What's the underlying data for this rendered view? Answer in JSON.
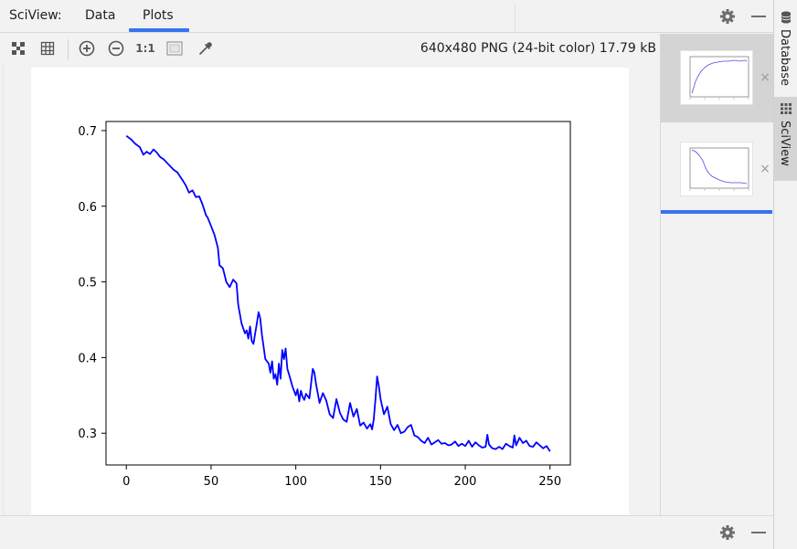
{
  "tool_window": {
    "title": "SciView:",
    "tabs": [
      {
        "label": "Data",
        "active": false
      },
      {
        "label": "Plots",
        "active": true
      }
    ]
  },
  "toolbar": {
    "image_info": "640x480 PNG (24-bit color) 17.79 kB",
    "icons": [
      "fit-to-window-icon",
      "grid-icon",
      "zoom-in-icon",
      "zoom-out-icon",
      "actual-size-icon",
      "background-icon",
      "color-picker-icon"
    ],
    "actual_size_label": "1:1"
  },
  "right_strip": {
    "tabs": [
      {
        "label": "Database",
        "icon": "database-icon",
        "active": false
      },
      {
        "label": "SciView",
        "icon": "sciview-icon",
        "active": true
      }
    ]
  },
  "thumbnails": [
    {
      "close": "×",
      "selected": false
    },
    {
      "close": "×",
      "selected": true
    }
  ],
  "colors": {
    "accent": "#3574f0",
    "line": "#0000ff"
  },
  "chart_data": {
    "type": "line",
    "title": "",
    "xlabel": "",
    "ylabel": "",
    "xlim": [
      -12,
      262
    ],
    "ylim": [
      0.258,
      0.712
    ],
    "xticks": [
      0,
      50,
      100,
      150,
      200,
      250
    ],
    "xtick_labels": [
      "0",
      "50",
      "100",
      "150",
      "200",
      "250"
    ],
    "yticks": [
      0.3,
      0.4,
      0.5,
      0.6,
      0.7
    ],
    "ytick_labels": [
      "0.3",
      "0.4",
      "0.5",
      "0.6",
      "0.7"
    ],
    "grid": false,
    "series": [
      {
        "color": "#0000ff",
        "x": [
          0,
          3,
          5,
          8,
          10,
          12,
          14,
          16,
          18,
          20,
          22,
          25,
          28,
          30,
          33,
          35,
          37,
          39,
          41,
          43,
          45,
          47,
          48,
          50,
          52,
          54,
          55,
          57,
          59,
          61,
          63,
          65,
          66,
          68,
          70,
          71,
          72,
          73,
          74,
          75,
          76,
          77,
          78,
          79,
          80,
          82,
          84,
          85,
          86,
          87,
          88,
          89,
          90,
          91,
          92,
          93,
          94,
          95,
          96,
          98,
          100,
          101,
          102,
          103,
          104,
          105,
          106,
          108,
          110,
          111,
          112,
          113,
          114,
          116,
          118,
          120,
          122,
          124,
          126,
          128,
          130,
          132,
          134,
          136,
          138,
          140,
          142,
          144,
          145,
          146,
          147,
          148,
          149,
          150,
          152,
          154,
          156,
          158,
          160,
          162,
          164,
          166,
          168,
          170,
          172,
          174,
          176,
          178,
          180,
          182,
          184,
          186,
          188,
          190,
          192,
          194,
          196,
          198,
          200,
          202,
          204,
          206,
          208,
          210,
          212,
          213,
          214,
          216,
          218,
          220,
          222,
          224,
          226,
          228,
          229,
          230,
          232,
          234,
          236,
          238,
          240,
          242,
          244,
          246,
          248,
          250
        ],
        "y": [
          0.693,
          0.688,
          0.683,
          0.678,
          0.668,
          0.672,
          0.669,
          0.675,
          0.671,
          0.665,
          0.662,
          0.655,
          0.648,
          0.645,
          0.635,
          0.628,
          0.618,
          0.621,
          0.612,
          0.613,
          0.602,
          0.588,
          0.585,
          0.574,
          0.562,
          0.545,
          0.522,
          0.518,
          0.5,
          0.493,
          0.503,
          0.498,
          0.47,
          0.445,
          0.432,
          0.436,
          0.425,
          0.441,
          0.422,
          0.418,
          0.432,
          0.445,
          0.46,
          0.452,
          0.43,
          0.398,
          0.392,
          0.38,
          0.395,
          0.372,
          0.378,
          0.364,
          0.392,
          0.372,
          0.41,
          0.398,
          0.412,
          0.385,
          0.378,
          0.362,
          0.35,
          0.358,
          0.342,
          0.356,
          0.348,
          0.344,
          0.352,
          0.346,
          0.385,
          0.38,
          0.364,
          0.352,
          0.34,
          0.353,
          0.343,
          0.325,
          0.32,
          0.345,
          0.327,
          0.318,
          0.315,
          0.34,
          0.322,
          0.332,
          0.31,
          0.314,
          0.306,
          0.312,
          0.305,
          0.318,
          0.345,
          0.375,
          0.362,
          0.345,
          0.325,
          0.335,
          0.312,
          0.304,
          0.311,
          0.3,
          0.302,
          0.308,
          0.311,
          0.297,
          0.295,
          0.29,
          0.287,
          0.294,
          0.285,
          0.288,
          0.291,
          0.286,
          0.287,
          0.284,
          0.285,
          0.289,
          0.283,
          0.286,
          0.283,
          0.29,
          0.282,
          0.288,
          0.284,
          0.281,
          0.282,
          0.298,
          0.285,
          0.28,
          0.279,
          0.282,
          0.279,
          0.286,
          0.283,
          0.281,
          0.297,
          0.284,
          0.294,
          0.287,
          0.29,
          0.283,
          0.282,
          0.288,
          0.284,
          0.28,
          0.283,
          0.276
        ]
      }
    ]
  }
}
